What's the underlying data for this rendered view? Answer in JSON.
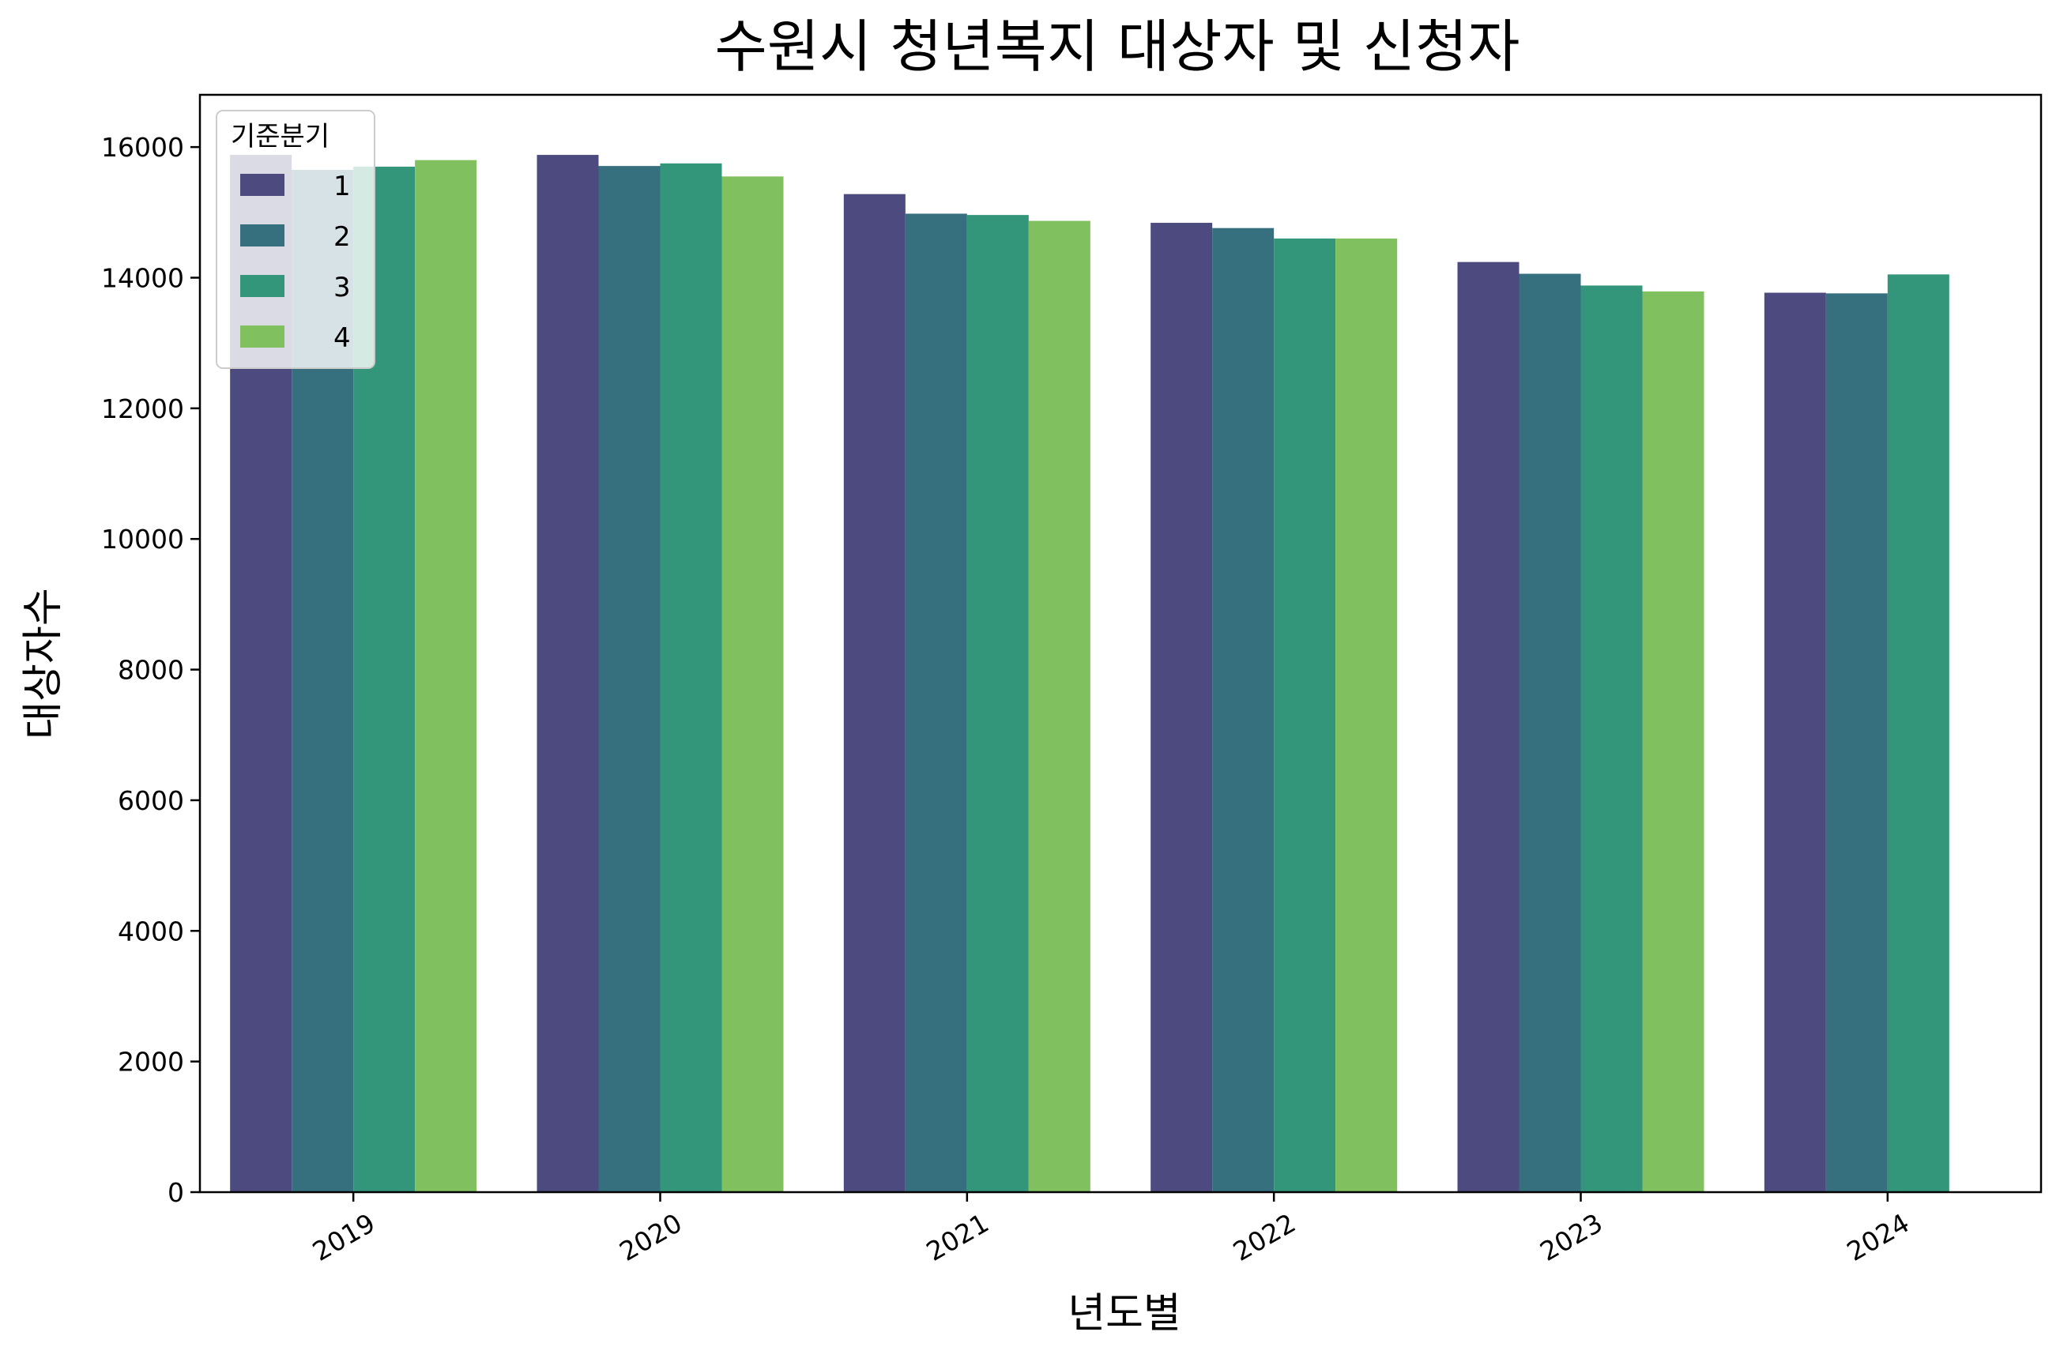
{
  "chart_data": {
    "type": "bar",
    "title": "수원시 청년복지 대상자 및 신청자",
    "xlabel": "년도별",
    "ylabel": "대상자수",
    "categories": [
      "2019",
      "2020",
      "2021",
      "2022",
      "2023",
      "2024"
    ],
    "ylim": [
      0,
      16800
    ],
    "yticks": [
      0,
      2000,
      4000,
      6000,
      8000,
      10000,
      12000,
      14000,
      16000
    ],
    "legend": {
      "title": "기준분기",
      "placement": "top-left"
    },
    "series": [
      {
        "name": "1",
        "color": "#4c4a7e",
        "values": [
          15880,
          15880,
          15280,
          14840,
          14240,
          13770
        ]
      },
      {
        "name": "2",
        "color": "#36707e",
        "values": [
          15650,
          15710,
          14980,
          14760,
          14060,
          13760
        ]
      },
      {
        "name": "3",
        "color": "#33967a",
        "values": [
          15700,
          15750,
          14960,
          14600,
          13880,
          14050
        ]
      },
      {
        "name": "4",
        "color": "#80c05f",
        "values": [
          15800,
          15550,
          14870,
          14600,
          13790,
          null
        ]
      }
    ]
  }
}
